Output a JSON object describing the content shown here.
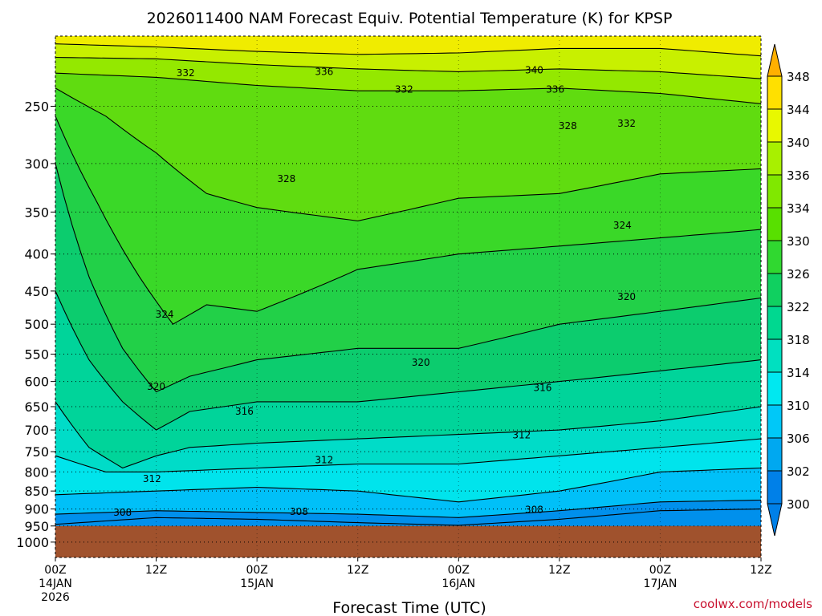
{
  "chart_data": {
    "type": "heatmap",
    "title": "2026011400 NAM Forecast Equiv. Potential Temperature (K) for KPSP",
    "xlabel": "Forecast Time (UTC)",
    "ylabel": "",
    "credit": "coolwx.com/models",
    "y_axis": {
      "scale": "log-pressure",
      "range_hPa": [
        1050,
        200
      ],
      "ticks": [
        250,
        300,
        350,
        400,
        450,
        500,
        550,
        600,
        650,
        700,
        750,
        800,
        850,
        900,
        950,
        1000
      ],
      "tick_labels": [
        "250",
        "300",
        "350",
        "400",
        "450",
        "500",
        "550",
        "600",
        "650",
        "700",
        "750",
        "800",
        "850",
        "900",
        "950",
        "1000"
      ]
    },
    "x_axis": {
      "range_hours": [
        0,
        84
      ],
      "ticks": [
        {
          "hour": 0,
          "lines": [
            "00Z",
            "14JAN",
            "2026"
          ]
        },
        {
          "hour": 12,
          "lines": [
            "12Z"
          ]
        },
        {
          "hour": 24,
          "lines": [
            "00Z",
            "15JAN"
          ]
        },
        {
          "hour": 36,
          "lines": [
            "12Z"
          ]
        },
        {
          "hour": 48,
          "lines": [
            "00Z",
            "16JAN"
          ]
        },
        {
          "hour": 60,
          "lines": [
            "12Z"
          ]
        },
        {
          "hour": 72,
          "lines": [
            "00Z",
            "17JAN"
          ]
        },
        {
          "hour": 84,
          "lines": [
            "12Z"
          ]
        }
      ]
    },
    "surface_pressure_hPa": 950,
    "grid": true,
    "colorbar": {
      "levels": [
        300,
        302,
        306,
        310,
        314,
        318,
        322,
        326,
        330,
        334,
        336,
        340,
        344,
        348
      ],
      "labels": [
        "300",
        "302",
        "306",
        "310",
        "314",
        "318",
        "322",
        "326",
        "330",
        "334",
        "336",
        "340",
        "344",
        "348"
      ],
      "colors": [
        "#0080e8",
        "#00a8f0",
        "#00c8f8",
        "#00e8f0",
        "#00e0c0",
        "#00d890",
        "#10d060",
        "#30d830",
        "#58e000",
        "#80e800",
        "#a8f000",
        "#e8f800",
        "#ffe000",
        "#ffb000"
      ]
    },
    "bands": [
      {
        "name": "≥340",
        "color": "#f0ec00",
        "points": [
          [
            0,
            205
          ],
          [
            12,
            207
          ],
          [
            24,
            210
          ],
          [
            36,
            212
          ],
          [
            48,
            211
          ],
          [
            60,
            208
          ],
          [
            72,
            208
          ],
          [
            84,
            213
          ]
        ]
      },
      {
        "name": "336–340",
        "color": "#c8f000",
        "points": [
          [
            0,
            214
          ],
          [
            12,
            215
          ],
          [
            24,
            219
          ],
          [
            36,
            222
          ],
          [
            48,
            224
          ],
          [
            60,
            222
          ],
          [
            72,
            224
          ],
          [
            84,
            229
          ]
        ]
      },
      {
        "name": "332–336",
        "color": "#94e800",
        "points": [
          [
            0,
            225
          ],
          [
            12,
            228
          ],
          [
            24,
            234
          ],
          [
            36,
            238
          ],
          [
            48,
            238
          ],
          [
            60,
            236
          ],
          [
            72,
            240
          ],
          [
            84,
            248
          ]
        ]
      },
      {
        "name": "328–332",
        "color": "#60dc10",
        "points": [
          [
            0,
            236
          ],
          [
            6,
            258
          ],
          [
            12,
            290
          ],
          [
            18,
            330
          ],
          [
            24,
            345
          ],
          [
            36,
            360
          ],
          [
            48,
            335
          ],
          [
            60,
            330
          ],
          [
            72,
            310
          ],
          [
            84,
            305
          ]
        ]
      },
      {
        "name": "324–328",
        "color": "#3ad828",
        "points": [
          [
            0,
            258
          ],
          [
            5,
            340
          ],
          [
            10,
            430
          ],
          [
            14,
            500
          ],
          [
            18,
            470
          ],
          [
            24,
            480
          ],
          [
            36,
            420
          ],
          [
            48,
            400
          ],
          [
            60,
            390
          ],
          [
            72,
            380
          ],
          [
            84,
            370
          ]
        ]
      },
      {
        "name": "320–324",
        "color": "#22d048",
        "points": [
          [
            0,
            300
          ],
          [
            4,
            430
          ],
          [
            8,
            540
          ],
          [
            12,
            620
          ],
          [
            16,
            590
          ],
          [
            24,
            560
          ],
          [
            36,
            540
          ],
          [
            48,
            540
          ],
          [
            60,
            500
          ],
          [
            72,
            480
          ],
          [
            84,
            460
          ]
        ]
      },
      {
        "name": "316–320",
        "color": "#0ccc6e",
        "points": [
          [
            0,
            450
          ],
          [
            4,
            560
          ],
          [
            8,
            640
          ],
          [
            12,
            700
          ],
          [
            16,
            660
          ],
          [
            24,
            640
          ],
          [
            36,
            640
          ],
          [
            48,
            620
          ],
          [
            60,
            600
          ],
          [
            72,
            580
          ],
          [
            84,
            560
          ]
        ]
      },
      {
        "name": "312–316",
        "color": "#00d49a",
        "points": [
          [
            0,
            640
          ],
          [
            4,
            740
          ],
          [
            8,
            790
          ],
          [
            12,
            760
          ],
          [
            16,
            740
          ],
          [
            24,
            730
          ],
          [
            36,
            720
          ],
          [
            48,
            710
          ],
          [
            60,
            700
          ],
          [
            72,
            680
          ],
          [
            84,
            650
          ]
        ]
      },
      {
        "name": "308–312",
        "color": "#00dcc8",
        "points": [
          [
            0,
            760
          ],
          [
            6,
            800
          ],
          [
            12,
            800
          ],
          [
            24,
            790
          ],
          [
            36,
            780
          ],
          [
            48,
            780
          ],
          [
            60,
            760
          ],
          [
            72,
            740
          ],
          [
            84,
            720
          ]
        ]
      },
      {
        "name": "304–308",
        "color": "#00e4ec",
        "points": [
          [
            0,
            860
          ],
          [
            12,
            850
          ],
          [
            24,
            840
          ],
          [
            36,
            850
          ],
          [
            48,
            880
          ],
          [
            60,
            850
          ],
          [
            72,
            800
          ],
          [
            84,
            790
          ]
        ]
      },
      {
        "name": "300–304",
        "color": "#00c0f8",
        "points": [
          [
            0,
            915
          ],
          [
            12,
            905
          ],
          [
            24,
            910
          ],
          [
            36,
            915
          ],
          [
            48,
            925
          ],
          [
            60,
            905
          ],
          [
            72,
            880
          ],
          [
            84,
            875
          ]
        ]
      },
      {
        "name": "≤300",
        "color": "#0090ec",
        "points": [
          [
            0,
            945
          ],
          [
            12,
            925
          ],
          [
            24,
            930
          ],
          [
            36,
            940
          ],
          [
            48,
            948
          ],
          [
            60,
            930
          ],
          [
            72,
            905
          ],
          [
            84,
            900
          ]
        ]
      }
    ],
    "contour_labels": [
      {
        "text": "332",
        "hour": 15.5,
        "p": 225
      },
      {
        "text": "336",
        "hour": 32,
        "p": 224
      },
      {
        "text": "340",
        "hour": 57,
        "p": 223
      },
      {
        "text": "332",
        "hour": 41.5,
        "p": 237
      },
      {
        "text": "336",
        "hour": 59.5,
        "p": 237
      },
      {
        "text": "328",
        "hour": 61,
        "p": 266
      },
      {
        "text": "332",
        "hour": 68,
        "p": 264
      },
      {
        "text": "328",
        "hour": 27.5,
        "p": 315
      },
      {
        "text": "324",
        "hour": 67.5,
        "p": 365
      },
      {
        "text": "324",
        "hour": 13,
        "p": 485
      },
      {
        "text": "320",
        "hour": 68,
        "p": 458
      },
      {
        "text": "320",
        "hour": 43.5,
        "p": 565
      },
      {
        "text": "320",
        "hour": 12,
        "p": 610
      },
      {
        "text": "316",
        "hour": 58,
        "p": 612
      },
      {
        "text": "316",
        "hour": 22.5,
        "p": 660
      },
      {
        "text": "312",
        "hour": 55.5,
        "p": 712
      },
      {
        "text": "312",
        "hour": 32,
        "p": 770
      },
      {
        "text": "312",
        "hour": 11.5,
        "p": 818
      },
      {
        "text": "308",
        "hour": 8,
        "p": 910
      },
      {
        "text": "308",
        "hour": 29,
        "p": 908
      },
      {
        "text": "308",
        "hour": 57,
        "p": 902
      }
    ]
  }
}
